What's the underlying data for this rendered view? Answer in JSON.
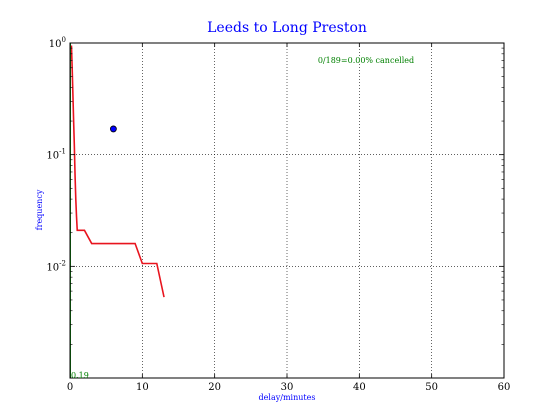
{
  "chart_data": {
    "type": "line",
    "title": "Leeds to Long Preston",
    "xlabel": "delay/minutes",
    "ylabel": "frequency",
    "xlim": [
      0,
      60
    ],
    "ylim": [
      0.001,
      1
    ],
    "y_scale": "log",
    "grid": true,
    "x_ticks": [
      0,
      10,
      20,
      30,
      40,
      50,
      60
    ],
    "y_ticks": [
      {
        "value": 1,
        "base": "10",
        "exp": "0"
      },
      {
        "value": 0.1,
        "base": "10",
        "exp": "-1"
      },
      {
        "value": 0.01,
        "base": "10",
        "exp": "-2"
      }
    ],
    "annotations": {
      "cancelled": "0/189=0.00% cancelled",
      "corner": "0.19"
    },
    "series": [
      {
        "color": "#e8141e",
        "points": [
          [
            0.2,
            0.95
          ],
          [
            0.3,
            0.6
          ],
          [
            0.4,
            0.35
          ],
          [
            0.5,
            0.2
          ],
          [
            0.6,
            0.12
          ],
          [
            0.7,
            0.065
          ],
          [
            0.8,
            0.04
          ],
          [
            0.9,
            0.028
          ],
          [
            1.0,
            0.021
          ],
          [
            2.0,
            0.021
          ],
          [
            3.0,
            0.016
          ],
          [
            9.0,
            0.016
          ],
          [
            10.0,
            0.0106
          ],
          [
            12.0,
            0.0106
          ],
          [
            13.0,
            0.0053
          ]
        ]
      },
      {
        "color": "#008000",
        "points": [
          [
            0.05,
            0.001
          ],
          [
            0.05,
            1
          ]
        ]
      }
    ],
    "marker": {
      "x": 6,
      "y": 0.17,
      "color": "#0000ff"
    }
  }
}
